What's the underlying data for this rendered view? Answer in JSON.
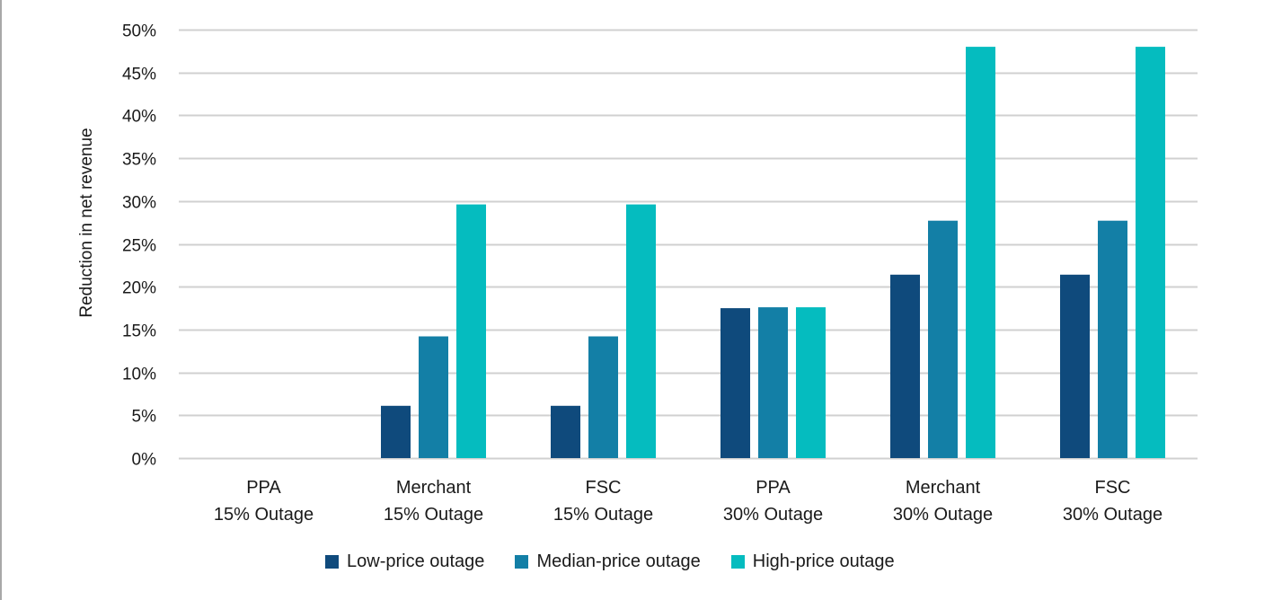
{
  "chart_data": {
    "type": "bar",
    "title": "",
    "xlabel": "",
    "ylabel": "Reduction in net revenue",
    "ylim": [
      0,
      50
    ],
    "yticks": [
      0,
      5,
      10,
      15,
      20,
      25,
      30,
      35,
      40,
      45,
      50
    ],
    "ytick_labels": [
      "0%",
      "5%",
      "10%",
      "15%",
      "20%",
      "25%",
      "30%",
      "35%",
      "40%",
      "45%",
      "50%"
    ],
    "grid": true,
    "legend_position": "bottom",
    "categories": [
      [
        "PPA",
        "15% Outage"
      ],
      [
        "Merchant",
        "15% Outage"
      ],
      [
        "FSC",
        "15% Outage"
      ],
      [
        "PPA",
        "30% Outage"
      ],
      [
        "Merchant",
        "30% Outage"
      ],
      [
        "FSC",
        "30% Outage"
      ]
    ],
    "series": [
      {
        "name": "Low-price outage",
        "color": "#0f4a7c",
        "values": [
          0,
          6.1,
          6.1,
          17.5,
          21.4,
          21.4
        ]
      },
      {
        "name": "Median-price outage",
        "color": "#137fa6",
        "values": [
          0,
          14.2,
          14.2,
          17.6,
          27.7,
          27.7
        ]
      },
      {
        "name": "High-price outage",
        "color": "#05bcbf",
        "values": [
          0,
          29.6,
          29.6,
          17.6,
          48.0,
          48.0
        ]
      }
    ],
    "gridline_color": "#d0d0d0"
  }
}
